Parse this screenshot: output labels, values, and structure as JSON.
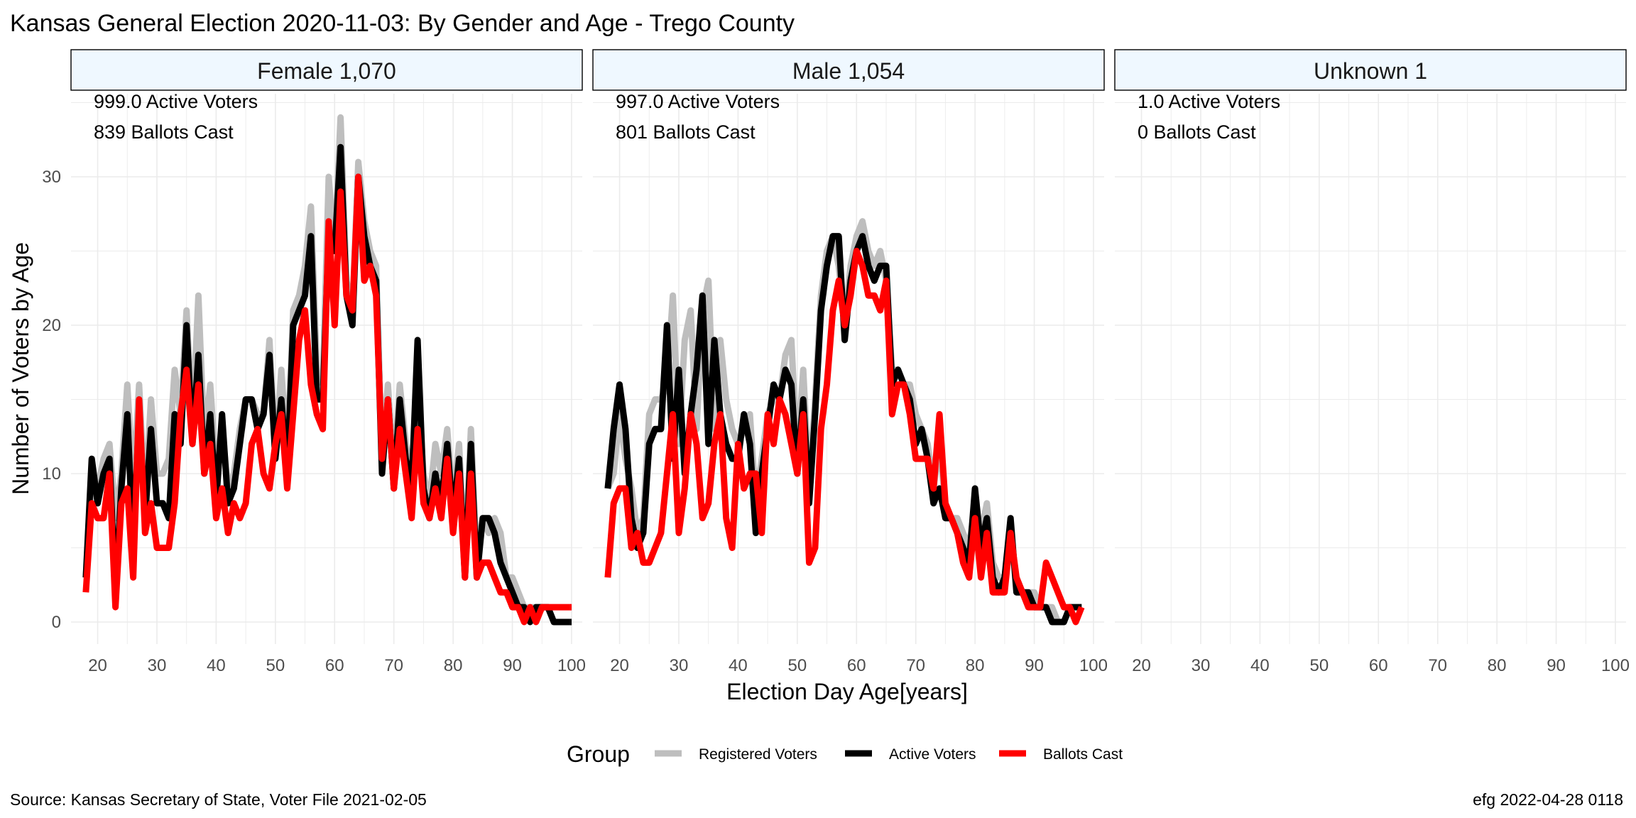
{
  "chart_data": {
    "type": "line",
    "title": "Kansas General Election 2020-11-03:  By Gender and Age - Trego County",
    "xlabel": "Election Day Age[years]",
    "ylabel": "Number of Voters by Age",
    "xlim": [
      18,
      100
    ],
    "ylim": [
      0,
      34
    ],
    "xticks": [
      20,
      30,
      40,
      50,
      60,
      70,
      80,
      90,
      100
    ],
    "yticks": [
      0,
      10,
      20,
      30
    ],
    "grid": true,
    "legend": {
      "position": "bottom",
      "title": "Group",
      "items": [
        {
          "name": "Registered Voters",
          "color": "#bebebe"
        },
        {
          "name": "Active Voters",
          "color": "#000000"
        },
        {
          "name": "Ballots Cast",
          "color": "#ff0000"
        }
      ]
    },
    "footer_left": "Source:  Kansas Secretary of State, Voter File  2021-02-05",
    "footer_right": "efg 2022-04-28 0118",
    "panels": [
      {
        "strip_label": "Female 1,070",
        "annotation_1": "999.0 Active Voters",
        "annotation_2": "839 Ballots Cast",
        "series": [
          {
            "name": "Registered Voters",
            "color": "#bebebe",
            "x": [
              18,
              19,
              20,
              21,
              22,
              23,
              24,
              25,
              26,
              27,
              28,
              29,
              30,
              31,
              32,
              33,
              34,
              35,
              36,
              37,
              38,
              39,
              40,
              41,
              42,
              43,
              44,
              45,
              46,
              47,
              48,
              49,
              50,
              51,
              52,
              53,
              54,
              55,
              56,
              57,
              58,
              59,
              60,
              61,
              62,
              63,
              64,
              65,
              66,
              67,
              68,
              69,
              70,
              71,
              72,
              73,
              74,
              75,
              76,
              77,
              78,
              79,
              80,
              81,
              82,
              83,
              84,
              85,
              86,
              87,
              88,
              89,
              90,
              91,
              92,
              93,
              94,
              95,
              96,
              97,
              98,
              99,
              100
            ],
            "values": [
              3,
              10,
              9,
              11,
              12,
              7,
              10,
              16,
              9,
              16,
              8,
              15,
              10,
              10,
              11,
              17,
              14,
              21,
              13,
              22,
              12,
              16,
              10,
              13,
              9,
              10,
              13,
              15,
              15,
              14,
              14,
              19,
              11,
              17,
              11,
              21,
              22,
              24,
              28,
              17,
              16,
              30,
              25,
              34,
              23,
              21,
              31,
              27,
              25,
              24,
              11,
              16,
              10,
              16,
              12,
              10,
              16,
              10,
              8,
              12,
              10,
              13,
              8,
              12,
              4,
              13,
              4,
              7,
              6,
              7,
              6,
              3,
              3,
              2,
              1,
              1,
              1,
              1,
              1,
              0,
              0,
              0,
              0
            ]
          },
          {
            "name": "Active Voters",
            "color": "#000000",
            "x": [
              18,
              19,
              20,
              21,
              22,
              23,
              24,
              25,
              26,
              27,
              28,
              29,
              30,
              31,
              32,
              33,
              34,
              35,
              36,
              37,
              38,
              39,
              40,
              41,
              42,
              43,
              44,
              45,
              46,
              47,
              48,
              49,
              50,
              51,
              52,
              53,
              54,
              55,
              56,
              57,
              58,
              59,
              60,
              61,
              62,
              63,
              64,
              65,
              66,
              67,
              68,
              69,
              70,
              71,
              72,
              73,
              74,
              75,
              76,
              77,
              78,
              79,
              80,
              81,
              82,
              83,
              84,
              85,
              86,
              87,
              88,
              89,
              90,
              91,
              92,
              93,
              94,
              95,
              96,
              97,
              98,
              99,
              100
            ],
            "values": [
              3,
              11,
              8,
              10,
              11,
              2,
              9,
              14,
              5,
              14,
              7,
              13,
              8,
              8,
              7,
              14,
              12,
              20,
              12,
              18,
              10,
              14,
              8,
              14,
              8,
              9,
              12,
              15,
              15,
              13,
              14,
              18,
              11,
              15,
              10,
              20,
              21,
              22,
              26,
              15,
              15,
              26,
              25,
              32,
              22,
              20,
              30,
              26,
              24,
              23,
              10,
              15,
              9,
              15,
              11,
              9,
              19,
              9,
              7,
              10,
              8,
              12,
              7,
              11,
              3,
              12,
              3,
              7,
              7,
              6,
              4,
              3,
              2,
              1,
              1,
              0,
              1,
              1,
              1,
              0,
              0,
              0,
              0
            ]
          },
          {
            "name": "Ballots Cast",
            "color": "#ff0000",
            "x": [
              18,
              19,
              20,
              21,
              22,
              23,
              24,
              25,
              26,
              27,
              28,
              29,
              30,
              31,
              32,
              33,
              34,
              35,
              36,
              37,
              38,
              39,
              40,
              41,
              42,
              43,
              44,
              45,
              46,
              47,
              48,
              49,
              50,
              51,
              52,
              53,
              54,
              55,
              56,
              57,
              58,
              59,
              60,
              61,
              62,
              63,
              64,
              65,
              66,
              67,
              68,
              69,
              70,
              71,
              72,
              73,
              74,
              75,
              76,
              77,
              78,
              79,
              80,
              81,
              82,
              83,
              84,
              85,
              86,
              87,
              88,
              89,
              90,
              91,
              92,
              93,
              94,
              95,
              96,
              97,
              98,
              99,
              100
            ],
            "values": [
              2,
              8,
              7,
              7,
              10,
              1,
              8,
              9,
              3,
              15,
              6,
              8,
              5,
              5,
              5,
              8,
              14,
              17,
              12,
              16,
              10,
              12,
              7,
              9,
              6,
              8,
              7,
              8,
              12,
              13,
              10,
              9,
              12,
              14,
              9,
              14,
              19,
              21,
              16,
              14,
              13,
              27,
              20,
              29,
              22,
              21,
              30,
              23,
              24,
              22,
              11,
              15,
              9,
              13,
              10,
              7,
              13,
              8,
              7,
              9,
              7,
              11,
              6,
              10,
              3,
              10,
              3,
              4,
              4,
              3,
              2,
              2,
              1,
              1,
              0,
              1,
              0,
              1,
              1,
              1,
              1,
              1,
              1
            ]
          }
        ]
      },
      {
        "strip_label": "Male 1,054",
        "annotation_1": "997.0 Active Voters",
        "annotation_2": "801 Ballots Cast",
        "series": [
          {
            "name": "Registered Voters",
            "color": "#bebebe",
            "x": [
              18,
              19,
              20,
              21,
              22,
              23,
              24,
              25,
              26,
              27,
              28,
              29,
              30,
              31,
              32,
              33,
              34,
              35,
              36,
              37,
              38,
              39,
              40,
              41,
              42,
              43,
              44,
              45,
              46,
              47,
              48,
              49,
              50,
              51,
              52,
              53,
              54,
              55,
              56,
              57,
              58,
              59,
              60,
              61,
              62,
              63,
              64,
              65,
              66,
              67,
              68,
              69,
              70,
              71,
              72,
              73,
              74,
              75,
              76,
              77,
              78,
              79,
              80,
              81,
              82,
              83,
              84,
              85,
              86,
              87,
              88,
              89,
              90,
              91,
              92,
              93,
              94,
              95,
              96,
              97,
              98
            ],
            "values": [
              9,
              10,
              14,
              11,
              9,
              6,
              7,
              14,
              15,
              15,
              16,
              22,
              12,
              19,
              21,
              13,
              21,
              23,
              13,
              19,
              15,
              13,
              12,
              13,
              14,
              8,
              11,
              14,
              15,
              15,
              18,
              19,
              11,
              17,
              9,
              15,
              22,
              25,
              26,
              24,
              20,
              24,
              26,
              27,
              25,
              24,
              25,
              23,
              17,
              17,
              16,
              16,
              14,
              13,
              12,
              9,
              12,
              8,
              7,
              7,
              6,
              5,
              8,
              6,
              8,
              4,
              3,
              3,
              5,
              3,
              2,
              2,
              2,
              1,
              1,
              1,
              0,
              0,
              1,
              1,
              1
            ]
          },
          {
            "name": "Active Voters",
            "color": "#000000",
            "x": [
              18,
              19,
              20,
              21,
              22,
              23,
              24,
              25,
              26,
              27,
              28,
              29,
              30,
              31,
              32,
              33,
              34,
              35,
              36,
              37,
              38,
              39,
              40,
              41,
              42,
              43,
              44,
              45,
              46,
              47,
              48,
              49,
              50,
              51,
              52,
              53,
              54,
              55,
              56,
              57,
              58,
              59,
              60,
              61,
              62,
              63,
              64,
              65,
              66,
              67,
              68,
              69,
              70,
              71,
              72,
              73,
              74,
              75,
              76,
              77,
              78,
              79,
              80,
              81,
              82,
              83,
              84,
              85,
              86,
              87,
              88,
              89,
              90,
              91,
              92,
              93,
              94,
              95,
              96,
              97,
              98
            ],
            "values": [
              9,
              13,
              16,
              13,
              7,
              5,
              6,
              12,
              13,
              13,
              20,
              11,
              17,
              10,
              14,
              17,
              22,
              12,
              19,
              14,
              12,
              11,
              11,
              14,
              12,
              6,
              10,
              13,
              16,
              15,
              17,
              16,
              10,
              15,
              8,
              14,
              21,
              24,
              26,
              26,
              19,
              23,
              25,
              26,
              24,
              23,
              24,
              24,
              16,
              17,
              16,
              15,
              12,
              13,
              11,
              8,
              9,
              7,
              7,
              6,
              5,
              4,
              9,
              5,
              7,
              3,
              2,
              3,
              7,
              2,
              2,
              2,
              1,
              1,
              1,
              0,
              0,
              0,
              1,
              1,
              1
            ]
          },
          {
            "name": "Ballots Cast",
            "color": "#ff0000",
            "x": [
              18,
              19,
              20,
              21,
              22,
              23,
              24,
              25,
              26,
              27,
              28,
              29,
              30,
              31,
              32,
              33,
              34,
              35,
              36,
              37,
              38,
              39,
              40,
              41,
              42,
              43,
              44,
              45,
              46,
              47,
              48,
              49,
              50,
              51,
              52,
              53,
              54,
              55,
              56,
              57,
              58,
              59,
              60,
              61,
              62,
              63,
              64,
              65,
              66,
              67,
              68,
              69,
              70,
              71,
              72,
              73,
              74,
              75,
              76,
              77,
              78,
              79,
              80,
              81,
              82,
              83,
              84,
              85,
              86,
              87,
              88,
              89,
              90,
              91,
              92,
              93,
              94,
              95,
              96,
              97,
              98
            ],
            "values": [
              3,
              8,
              9,
              9,
              5,
              6,
              4,
              4,
              5,
              6,
              10,
              14,
              6,
              9,
              14,
              12,
              7,
              8,
              12,
              14,
              7,
              5,
              12,
              9,
              10,
              10,
              6,
              14,
              12,
              15,
              14,
              12,
              10,
              14,
              4,
              5,
              13,
              16,
              21,
              23,
              20,
              22,
              25,
              24,
              22,
              22,
              21,
              23,
              14,
              16,
              16,
              14,
              11,
              11,
              11,
              9,
              14,
              8,
              7,
              6,
              4,
              3,
              7,
              3,
              6,
              2,
              2,
              2,
              6,
              3,
              2,
              1,
              1,
              1,
              4,
              3,
              2,
              1,
              1,
              0,
              1
            ]
          }
        ]
      },
      {
        "strip_label": "Unknown 1",
        "annotation_1": "1.0 Active Voters",
        "annotation_2": "0 Ballots Cast",
        "series": []
      }
    ]
  }
}
